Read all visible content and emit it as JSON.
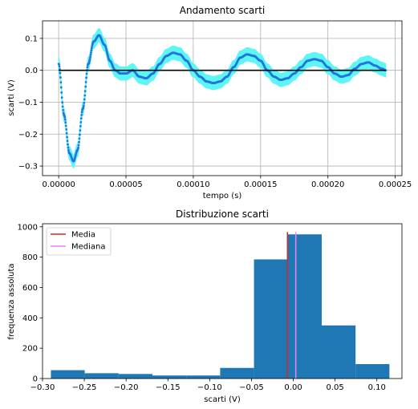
{
  "chart_data": [
    {
      "type": "scatter",
      "title": "Andamento scarti",
      "xlabel": "tempo (s)",
      "ylabel": "scarti (V)",
      "xlim": [
        -1.2e-05,
        0.000255
      ],
      "ylim": [
        -0.33,
        0.155
      ],
      "xticks": [
        0,
        5e-05,
        0.0001,
        0.00015,
        0.0002,
        0.00025
      ],
      "xtick_labels": [
        "0.00000",
        "0.00005",
        "0.00010",
        "0.00015",
        "0.00020",
        "0.00025"
      ],
      "yticks": [
        -0.3,
        -0.2,
        -0.1,
        0.0,
        0.1
      ],
      "ytick_labels": [
        "−0.3",
        "−0.2",
        "−0.1",
        "0.0",
        "0.1"
      ],
      "grid": true,
      "x_range": [
        0,
        0.000243
      ],
      "series": [
        {
          "kind": "residuals",
          "color": "#1f77e0",
          "errorbar_color": "#5ff5f5",
          "errorbar_halfwidth": 0.022,
          "x": [
            0,
            4e-06,
            8e-06,
            1.1e-05,
            1.4e-05,
            1.8e-05,
            2.2e-05,
            2.6e-05,
            3e-05,
            3.4e-05,
            3.8e-05,
            4.2e-05,
            4.6e-05,
            5e-05,
            5.5e-05,
            6e-05,
            6.5e-05,
            7e-05,
            7.5e-05,
            8e-05,
            8.5e-05,
            9e-05,
            9.5e-05,
            0.0001,
            0.000105,
            0.00011,
            0.000115,
            0.00012,
            0.000125,
            0.00013,
            0.000135,
            0.00014,
            0.000145,
            0.00015,
            0.000155,
            0.00016,
            0.000165,
            0.00017,
            0.000175,
            0.00018,
            0.000185,
            0.00019,
            0.000195,
            0.0002,
            0.000205,
            0.00021,
            0.000215,
            0.00022,
            0.000225,
            0.00023,
            0.000235,
            0.00024,
            0.000243
          ],
          "y": [
            0.02,
            -0.14,
            -0.26,
            -0.285,
            -0.25,
            -0.12,
            0.02,
            0.09,
            0.11,
            0.08,
            0.03,
            0.0,
            -0.01,
            -0.01,
            0.0,
            -0.02,
            -0.025,
            -0.01,
            0.02,
            0.045,
            0.055,
            0.05,
            0.03,
            0.0,
            -0.02,
            -0.035,
            -0.04,
            -0.035,
            -0.02,
            0.01,
            0.04,
            0.05,
            0.045,
            0.03,
            0.0,
            -0.02,
            -0.03,
            -0.025,
            -0.01,
            0.01,
            0.03,
            0.035,
            0.03,
            0.01,
            -0.01,
            -0.02,
            -0.015,
            0.005,
            0.02,
            0.025,
            0.015,
            0.005,
            0.0
          ]
        },
        {
          "kind": "zero_line",
          "color": "#000000",
          "x": [
            0,
            0.000243
          ],
          "y": [
            0,
            0
          ]
        }
      ]
    },
    {
      "type": "bar",
      "title": "Distribuzione scarti",
      "xlabel": "scarti (V)",
      "ylabel": "frequenza assoluta",
      "xlim": [
        -0.3,
        0.13
      ],
      "ylim": [
        0,
        1020
      ],
      "xticks": [
        -0.3,
        -0.25,
        -0.2,
        -0.15,
        -0.1,
        -0.05,
        0.0,
        0.05,
        0.1
      ],
      "xtick_labels": [
        "−0.30",
        "−0.25",
        "−0.20",
        "−0.15",
        "−0.10",
        "−0.05",
        "0.00",
        "0.05",
        "0.10"
      ],
      "yticks": [
        0,
        200,
        400,
        600,
        800,
        1000
      ],
      "ytick_labels": [
        "0",
        "200",
        "400",
        "600",
        "800",
        "1000"
      ],
      "grid": false,
      "bar_color": "#1f77b4",
      "bin_edges": [
        -0.29,
        -0.2495,
        -0.209,
        -0.1685,
        -0.128,
        -0.0875,
        -0.047,
        -0.0065,
        0.034,
        0.0745,
        0.115
      ],
      "values": [
        55,
        35,
        30,
        20,
        20,
        70,
        785,
        950,
        350,
        95
      ],
      "vlines": [
        {
          "name": "Media",
          "x": -0.007,
          "y_max": 965,
          "color": "#d62728"
        },
        {
          "name": "Mediana",
          "x": 0.003,
          "y_max": 965,
          "color": "#ee82ee"
        }
      ],
      "legend": {
        "position": "top-left",
        "entries": [
          "Media",
          "Mediana"
        ]
      }
    }
  ]
}
